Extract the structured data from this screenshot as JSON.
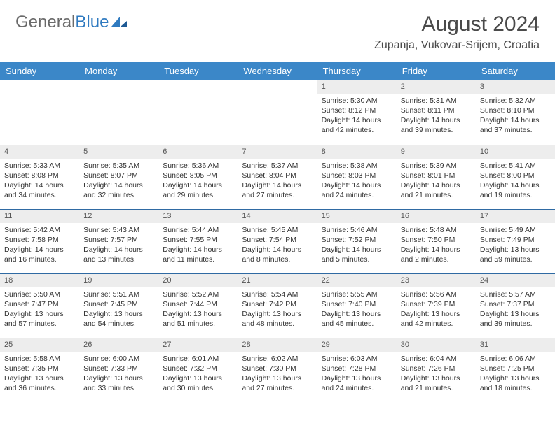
{
  "colors": {
    "header_bg": "#3b87c8",
    "header_text": "#ffffff",
    "daynum_bg": "#ededed",
    "row_divider": "#2f6aa3",
    "body_text": "#333333",
    "logo_gray": "#6a6a6a",
    "logo_blue": "#2f7ac0",
    "page_bg": "#ffffff"
  },
  "logo": {
    "part1": "General",
    "part2": "Blue"
  },
  "title": "August 2024",
  "location": "Zupanja, Vukovar-Srijem, Croatia",
  "day_headers": [
    "Sunday",
    "Monday",
    "Tuesday",
    "Wednesday",
    "Thursday",
    "Friday",
    "Saturday"
  ],
  "weeks": [
    [
      {
        "n": "",
        "sr": "",
        "ss": "",
        "dl": ""
      },
      {
        "n": "",
        "sr": "",
        "ss": "",
        "dl": ""
      },
      {
        "n": "",
        "sr": "",
        "ss": "",
        "dl": ""
      },
      {
        "n": "",
        "sr": "",
        "ss": "",
        "dl": ""
      },
      {
        "n": "1",
        "sr": "Sunrise: 5:30 AM",
        "ss": "Sunset: 8:12 PM",
        "dl": "Daylight: 14 hours and 42 minutes."
      },
      {
        "n": "2",
        "sr": "Sunrise: 5:31 AM",
        "ss": "Sunset: 8:11 PM",
        "dl": "Daylight: 14 hours and 39 minutes."
      },
      {
        "n": "3",
        "sr": "Sunrise: 5:32 AM",
        "ss": "Sunset: 8:10 PM",
        "dl": "Daylight: 14 hours and 37 minutes."
      }
    ],
    [
      {
        "n": "4",
        "sr": "Sunrise: 5:33 AM",
        "ss": "Sunset: 8:08 PM",
        "dl": "Daylight: 14 hours and 34 minutes."
      },
      {
        "n": "5",
        "sr": "Sunrise: 5:35 AM",
        "ss": "Sunset: 8:07 PM",
        "dl": "Daylight: 14 hours and 32 minutes."
      },
      {
        "n": "6",
        "sr": "Sunrise: 5:36 AM",
        "ss": "Sunset: 8:05 PM",
        "dl": "Daylight: 14 hours and 29 minutes."
      },
      {
        "n": "7",
        "sr": "Sunrise: 5:37 AM",
        "ss": "Sunset: 8:04 PM",
        "dl": "Daylight: 14 hours and 27 minutes."
      },
      {
        "n": "8",
        "sr": "Sunrise: 5:38 AM",
        "ss": "Sunset: 8:03 PM",
        "dl": "Daylight: 14 hours and 24 minutes."
      },
      {
        "n": "9",
        "sr": "Sunrise: 5:39 AM",
        "ss": "Sunset: 8:01 PM",
        "dl": "Daylight: 14 hours and 21 minutes."
      },
      {
        "n": "10",
        "sr": "Sunrise: 5:41 AM",
        "ss": "Sunset: 8:00 PM",
        "dl": "Daylight: 14 hours and 19 minutes."
      }
    ],
    [
      {
        "n": "11",
        "sr": "Sunrise: 5:42 AM",
        "ss": "Sunset: 7:58 PM",
        "dl": "Daylight: 14 hours and 16 minutes."
      },
      {
        "n": "12",
        "sr": "Sunrise: 5:43 AM",
        "ss": "Sunset: 7:57 PM",
        "dl": "Daylight: 14 hours and 13 minutes."
      },
      {
        "n": "13",
        "sr": "Sunrise: 5:44 AM",
        "ss": "Sunset: 7:55 PM",
        "dl": "Daylight: 14 hours and 11 minutes."
      },
      {
        "n": "14",
        "sr": "Sunrise: 5:45 AM",
        "ss": "Sunset: 7:54 PM",
        "dl": "Daylight: 14 hours and 8 minutes."
      },
      {
        "n": "15",
        "sr": "Sunrise: 5:46 AM",
        "ss": "Sunset: 7:52 PM",
        "dl": "Daylight: 14 hours and 5 minutes."
      },
      {
        "n": "16",
        "sr": "Sunrise: 5:48 AM",
        "ss": "Sunset: 7:50 PM",
        "dl": "Daylight: 14 hours and 2 minutes."
      },
      {
        "n": "17",
        "sr": "Sunrise: 5:49 AM",
        "ss": "Sunset: 7:49 PM",
        "dl": "Daylight: 13 hours and 59 minutes."
      }
    ],
    [
      {
        "n": "18",
        "sr": "Sunrise: 5:50 AM",
        "ss": "Sunset: 7:47 PM",
        "dl": "Daylight: 13 hours and 57 minutes."
      },
      {
        "n": "19",
        "sr": "Sunrise: 5:51 AM",
        "ss": "Sunset: 7:45 PM",
        "dl": "Daylight: 13 hours and 54 minutes."
      },
      {
        "n": "20",
        "sr": "Sunrise: 5:52 AM",
        "ss": "Sunset: 7:44 PM",
        "dl": "Daylight: 13 hours and 51 minutes."
      },
      {
        "n": "21",
        "sr": "Sunrise: 5:54 AM",
        "ss": "Sunset: 7:42 PM",
        "dl": "Daylight: 13 hours and 48 minutes."
      },
      {
        "n": "22",
        "sr": "Sunrise: 5:55 AM",
        "ss": "Sunset: 7:40 PM",
        "dl": "Daylight: 13 hours and 45 minutes."
      },
      {
        "n": "23",
        "sr": "Sunrise: 5:56 AM",
        "ss": "Sunset: 7:39 PM",
        "dl": "Daylight: 13 hours and 42 minutes."
      },
      {
        "n": "24",
        "sr": "Sunrise: 5:57 AM",
        "ss": "Sunset: 7:37 PM",
        "dl": "Daylight: 13 hours and 39 minutes."
      }
    ],
    [
      {
        "n": "25",
        "sr": "Sunrise: 5:58 AM",
        "ss": "Sunset: 7:35 PM",
        "dl": "Daylight: 13 hours and 36 minutes."
      },
      {
        "n": "26",
        "sr": "Sunrise: 6:00 AM",
        "ss": "Sunset: 7:33 PM",
        "dl": "Daylight: 13 hours and 33 minutes."
      },
      {
        "n": "27",
        "sr": "Sunrise: 6:01 AM",
        "ss": "Sunset: 7:32 PM",
        "dl": "Daylight: 13 hours and 30 minutes."
      },
      {
        "n": "28",
        "sr": "Sunrise: 6:02 AM",
        "ss": "Sunset: 7:30 PM",
        "dl": "Daylight: 13 hours and 27 minutes."
      },
      {
        "n": "29",
        "sr": "Sunrise: 6:03 AM",
        "ss": "Sunset: 7:28 PM",
        "dl": "Daylight: 13 hours and 24 minutes."
      },
      {
        "n": "30",
        "sr": "Sunrise: 6:04 AM",
        "ss": "Sunset: 7:26 PM",
        "dl": "Daylight: 13 hours and 21 minutes."
      },
      {
        "n": "31",
        "sr": "Sunrise: 6:06 AM",
        "ss": "Sunset: 7:25 PM",
        "dl": "Daylight: 13 hours and 18 minutes."
      }
    ]
  ]
}
